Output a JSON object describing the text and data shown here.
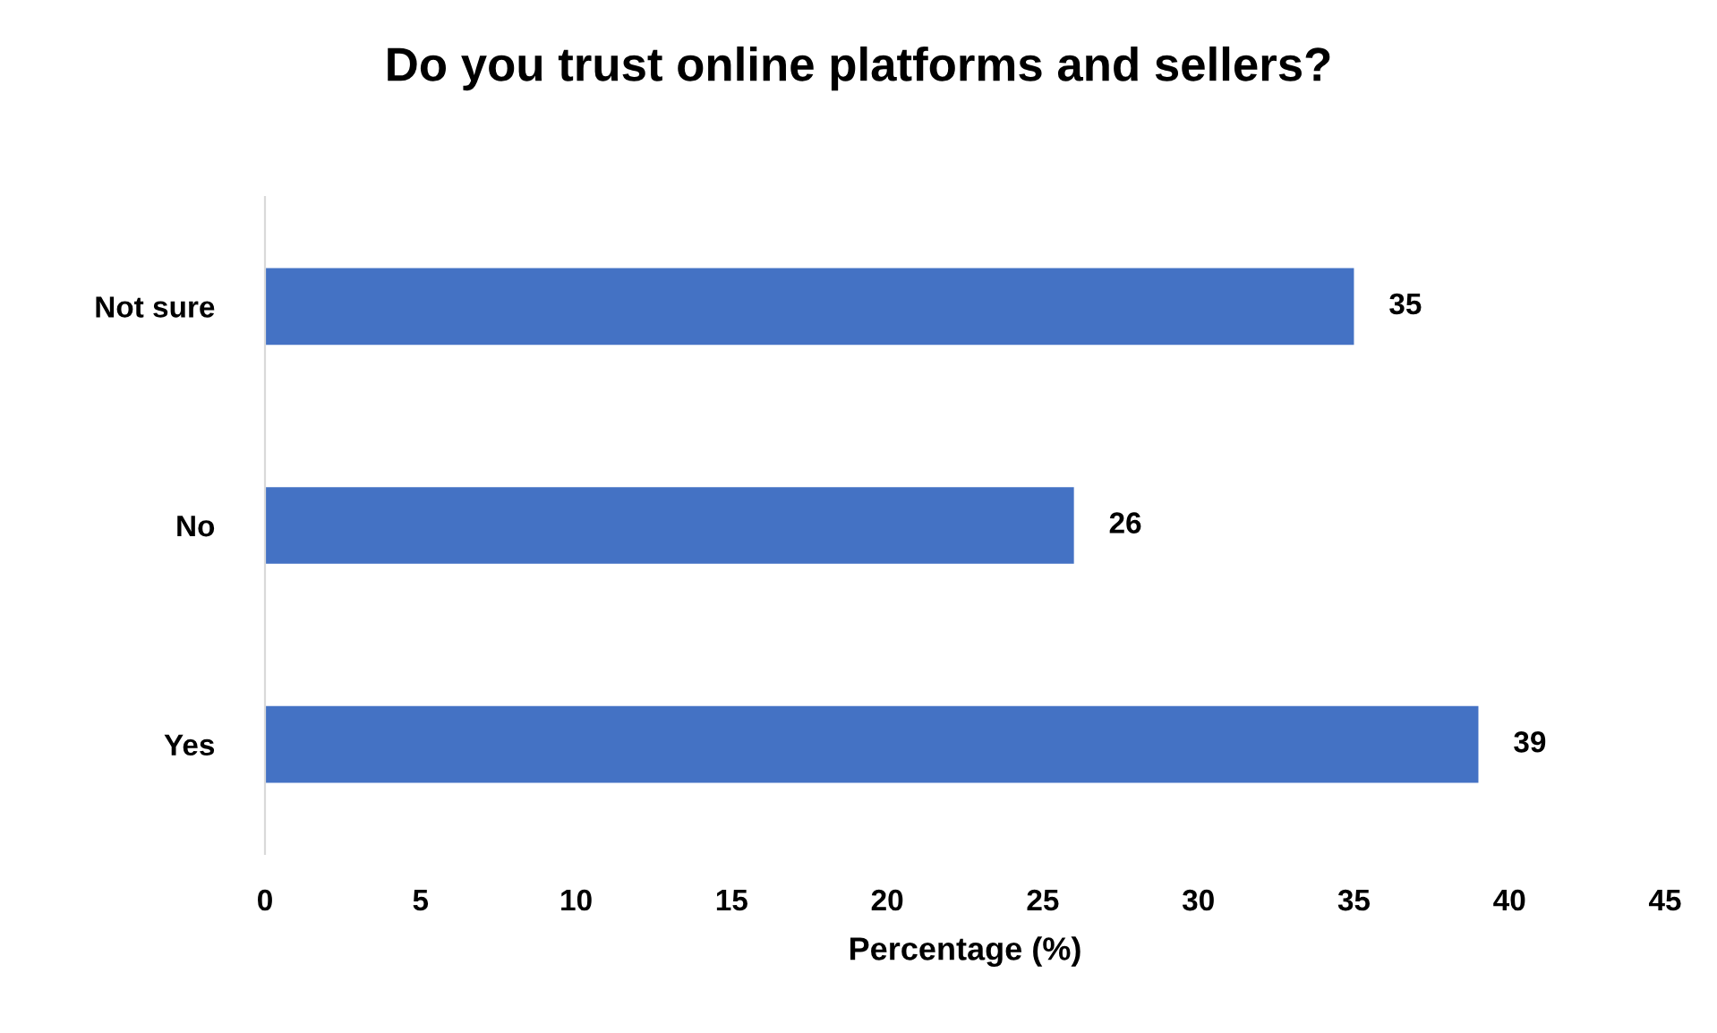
{
  "chart_data": {
    "type": "bar",
    "orientation": "horizontal",
    "title": "Do you trust online platforms and sellers?",
    "xlabel": "Percentage (%)",
    "categories": [
      "Not sure",
      "No",
      "Yes"
    ],
    "values": [
      35,
      26,
      39
    ],
    "color": "#4472c4",
    "xlim": [
      0,
      45
    ],
    "xticks": [
      0,
      5,
      10,
      15,
      20,
      25,
      30,
      35,
      40,
      45
    ],
    "grid": false,
    "data_labels": true
  }
}
